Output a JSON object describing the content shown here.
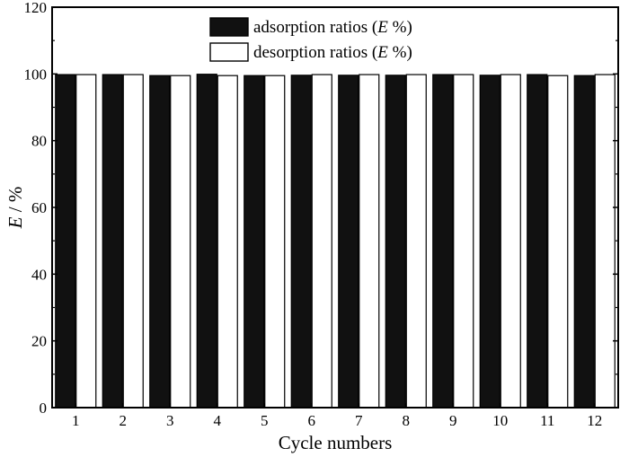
{
  "chart_data": {
    "type": "bar",
    "categories": [
      "1",
      "2",
      "3",
      "4",
      "5",
      "6",
      "7",
      "8",
      "9",
      "10",
      "11",
      "12"
    ],
    "series": [
      {
        "name": "adsorption ratios (E %)",
        "name_prefix": "adsorption ratios (",
        "name_var": "E",
        "name_suffix": " %)",
        "color": "#111111",
        "values": [
          99.8,
          99.8,
          99.5,
          99.9,
          99.5,
          99.6,
          99.6,
          99.6,
          99.8,
          99.6,
          99.8,
          99.5
        ]
      },
      {
        "name": "desorption ratios (E %)",
        "name_prefix": "desorption ratios (",
        "name_var": "E",
        "name_suffix": " %)",
        "color": "#ffffff",
        "values": [
          99.8,
          99.8,
          99.5,
          99.5,
          99.5,
          99.8,
          99.8,
          99.8,
          99.8,
          99.8,
          99.5,
          99.8
        ]
      }
    ],
    "xlabel": "Cycle numbers",
    "ylabel": "E / %",
    "ylabel_var": "E",
    "ylabel_rest": " / %",
    "ylim": [
      0,
      120
    ],
    "yticks": [
      0,
      20,
      40,
      60,
      80,
      100,
      120
    ],
    "grid": false,
    "legend_position": "top-center"
  }
}
